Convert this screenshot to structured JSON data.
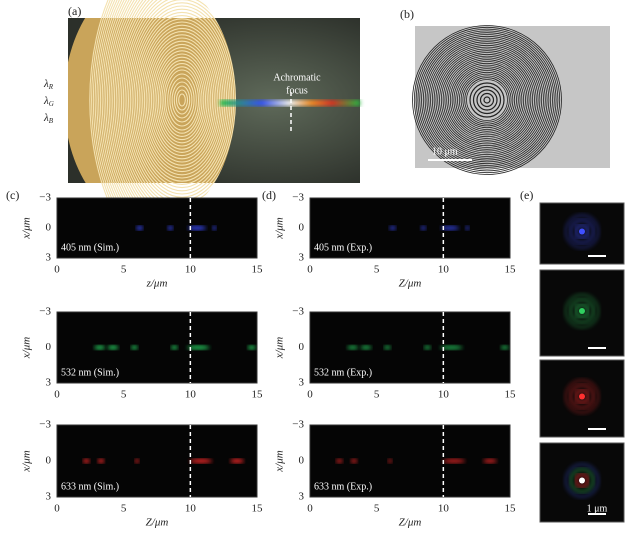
{
  "panels": {
    "a": {
      "label": "(a)",
      "wavelengths": [
        {
          "symbol": "λ",
          "sub": "R"
        },
        {
          "symbol": "λ",
          "sub": "G"
        },
        {
          "symbol": "λ",
          "sub": "B"
        }
      ],
      "annotation": [
        "Achromatic",
        "focus"
      ]
    },
    "b": {
      "label": "(b)",
      "scale_bar": "10 μm"
    },
    "c": {
      "label": "(c)"
    },
    "d": {
      "label": "(d)"
    },
    "e": {
      "label": "(e)",
      "scale_bar": "1 μm"
    }
  },
  "axes": {
    "ylabel": "x/μm",
    "yticks": [
      "−3",
      "0",
      "3"
    ],
    "xticks": [
      "0",
      "5",
      "10",
      "15"
    ]
  },
  "plots": [
    {
      "text": "405 nm (Sim.)",
      "xlabel": "z/μm"
    },
    {
      "text": "532 nm (Sim.)"
    },
    {
      "text": "633 nm (Sim.)",
      "xlabel": "Z/μm"
    },
    {
      "text": "405 nm (Exp.)",
      "xlabel": "Z/μm"
    },
    {
      "text": "532 nm (Exp.)"
    },
    {
      "text": "633 nm (Exp.)",
      "xlabel": "Z/μm"
    }
  ]
}
